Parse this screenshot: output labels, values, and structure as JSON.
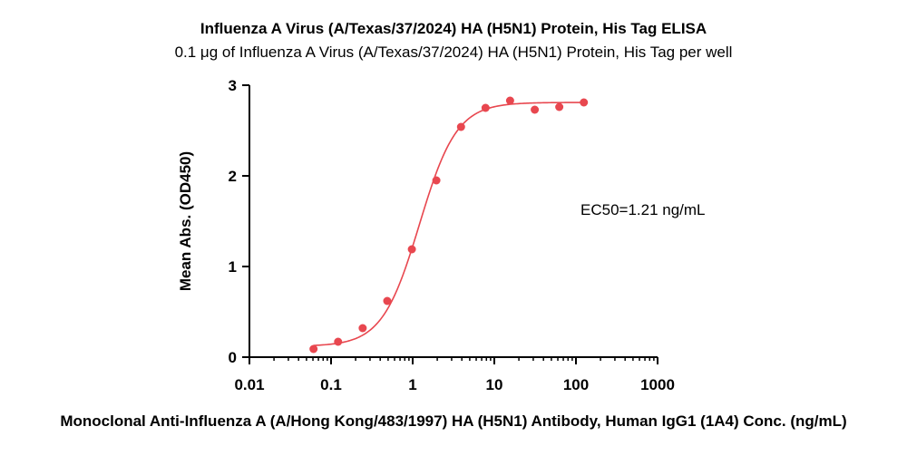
{
  "chart_data": {
    "type": "scatter",
    "title": "Influenza A Virus (A/Texas/37/2024) HA (H5N1) Protein, His Tag ELISA",
    "subtitle": "0.1 μg of Influenza A Virus (A/Texas/37/2024) HA (H5N1) Protein, His Tag per well",
    "xlabel": "Monoclonal Anti-Influenza A (A/Hong Kong/483/1997) HA (H5N1) Antibody, Human IgG1 (1A4) Conc. (ng/mL)",
    "ylabel": "Mean Abs. (OD450)",
    "x_scale": "log",
    "xlim": [
      0.01,
      1000
    ],
    "ylim": [
      0,
      3
    ],
    "x_ticks": [
      "0.01",
      "0.1",
      "1",
      "10",
      "100",
      "1000"
    ],
    "x_tick_values": [
      0.01,
      0.1,
      1,
      10,
      100,
      1000
    ],
    "y_ticks": [
      "0",
      "1",
      "2",
      "3"
    ],
    "y_tick_values": [
      0,
      1,
      2,
      3
    ],
    "grid": false,
    "color": "#e8474f",
    "series": [
      {
        "x": [
          0.061,
          0.122,
          0.244,
          0.488,
          0.977,
          1.95,
          3.91,
          7.81,
          15.6,
          31.3,
          62.5,
          125
        ],
        "y": [
          0.09,
          0.17,
          0.32,
          0.62,
          1.19,
          1.95,
          2.54,
          2.75,
          2.83,
          2.73,
          2.76,
          2.81
        ]
      }
    ],
    "fit": {
      "model": "4PL",
      "bottom": 0.12,
      "top": 2.81,
      "ec50": 1.21,
      "hill": 1.9
    },
    "annotations": [
      {
        "text": "EC50=1.21 ng/mL"
      }
    ]
  }
}
